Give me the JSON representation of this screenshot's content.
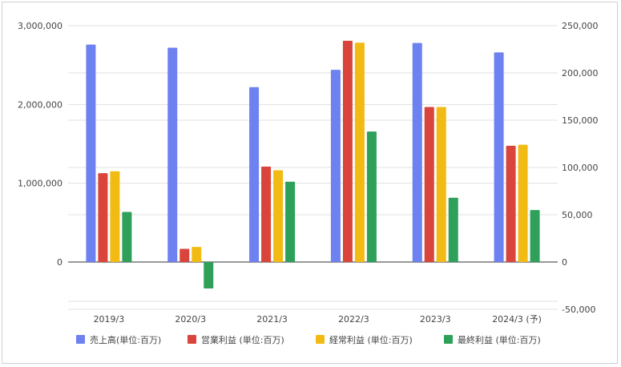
{
  "chart_data": {
    "type": "bar",
    "categories": [
      "2019/3",
      "2020/3",
      "2021/3",
      "2022/3",
      "2023/3",
      "2024/3 (予)"
    ],
    "left_axis": {
      "ylim": [
        -500000,
        3000000
      ],
      "ticks": [
        0,
        1000000,
        2000000,
        3000000
      ],
      "tick_labels": [
        "0",
        "1,000,000",
        "2,000,000",
        "3,000,000"
      ]
    },
    "right_axis": {
      "ylim": [
        -50000,
        250000
      ],
      "ticks": [
        -50000,
        0,
        50000,
        100000,
        150000,
        200000,
        250000
      ],
      "tick_labels": [
        "-50,000",
        "0",
        "50,000",
        "100,000",
        "150,000",
        "200,000",
        "250,000"
      ]
    },
    "grid": true,
    "legend_position": "bottom",
    "series": [
      {
        "name": "売上高(単位:百万)",
        "axis": "left",
        "color": "#6d81f0",
        "values": [
          2760000,
          2720000,
          2220000,
          2440000,
          2780000,
          2660000
        ]
      },
      {
        "name": "営業利益 (単位:百万)",
        "axis": "right",
        "color": "#d9443b",
        "values": [
          94000,
          14000,
          101000,
          234000,
          164000,
          123000
        ]
      },
      {
        "name": "経常利益 (単位:百万)",
        "axis": "right",
        "color": "#f2bb14",
        "values": [
          96000,
          16000,
          97000,
          232000,
          164000,
          124000
        ]
      },
      {
        "name": "最終利益 (単位:百万)",
        "axis": "right",
        "color": "#2ea05a",
        "values": [
          53000,
          -28000,
          85000,
          138000,
          68000,
          55000
        ]
      }
    ]
  }
}
